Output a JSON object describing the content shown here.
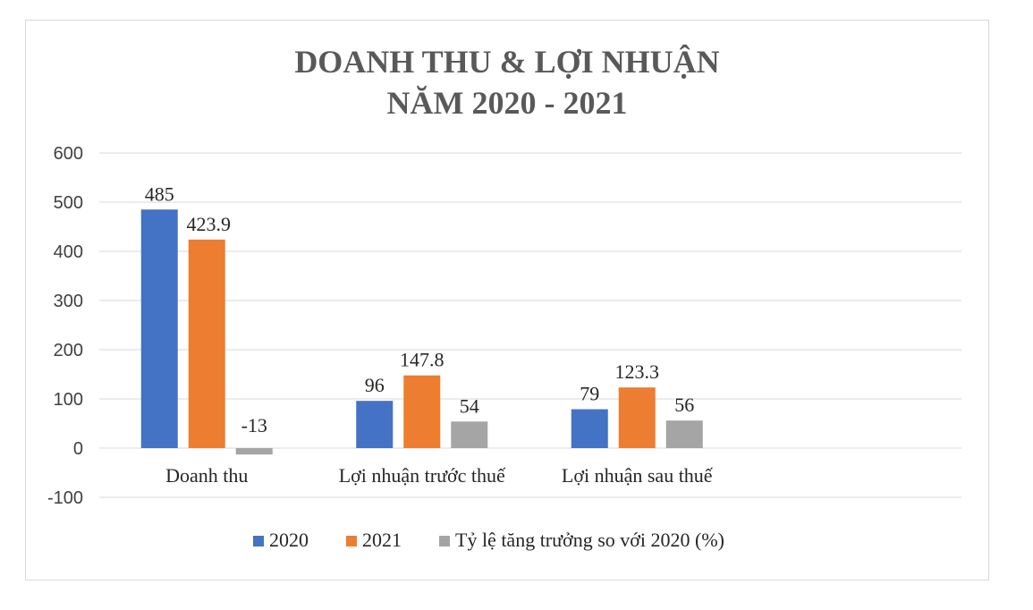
{
  "chart_data": {
    "type": "bar",
    "title": [
      "DOANH THU & LỢI NHUẬN",
      "NĂM 2020 - 2021"
    ],
    "categories": [
      "Doanh thu",
      "Lợi nhuận trước thuế",
      "Lợi nhuận sau thuế"
    ],
    "series": [
      {
        "name": "2020",
        "values": [
          485,
          96,
          79
        ],
        "labels": [
          "485",
          "96",
          "79"
        ],
        "color": "#4472c4"
      },
      {
        "name": "2021",
        "values": [
          423.9,
          147.8,
          123.3
        ],
        "labels": [
          "423.9",
          "147.8",
          "123.3"
        ],
        "color": "#ed7d31"
      },
      {
        "name": "Tỷ lệ tăng trưởng so với 2020 (%)",
        "values": [
          -13,
          54,
          56
        ],
        "labels": [
          "-13",
          "54",
          "56"
        ],
        "color": "#a5a5a5"
      }
    ],
    "ylim": [
      -100,
      600
    ],
    "yticks": [
      600,
      500,
      400,
      300,
      200,
      100,
      0,
      -100
    ],
    "grid": true,
    "legend": "bottom"
  }
}
